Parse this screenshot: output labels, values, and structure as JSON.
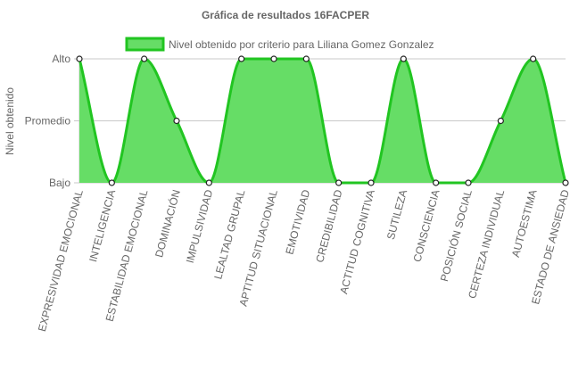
{
  "chart_data": {
    "type": "area",
    "title": "Gráfica de resultados 16FACPER",
    "ylabel": "Nivel obtenido",
    "xlabel": "",
    "y_categories": [
      "Bajo",
      "Promedio",
      "Alto"
    ],
    "ylim": [
      0,
      2
    ],
    "categories": [
      "EXPRESIVIDAD EMOCIONAL",
      "INTELIGENCIA",
      "ESTABILIDAD EMOCIONAL",
      "DOMINACIÓN",
      "IMPULSIVIDAD",
      "LEALTAD GRUPAL",
      "APTITUD SITUACIONAL",
      "EMOTIVIDAD",
      "CREDIBILIDAD",
      "ACTITUD COGNITIVA",
      "SUTILEZA",
      "CONSCIENCIA",
      "POSICIÓN SOCIAL",
      "CERTEZA INDIVIDUAL",
      "AUTOESTIMA",
      "ESTADO DE ANSIEDAD"
    ],
    "series": [
      {
        "name": "Nivel obtenido por criterio para Liliana Gomez Gonzalez",
        "values": [
          2,
          0,
          2,
          1,
          0,
          2,
          2,
          2,
          0,
          0,
          2,
          0,
          0,
          1,
          2,
          0
        ],
        "color": "#21c521",
        "fill": "#66dd66"
      }
    ],
    "legend": "top",
    "grid": true
  }
}
